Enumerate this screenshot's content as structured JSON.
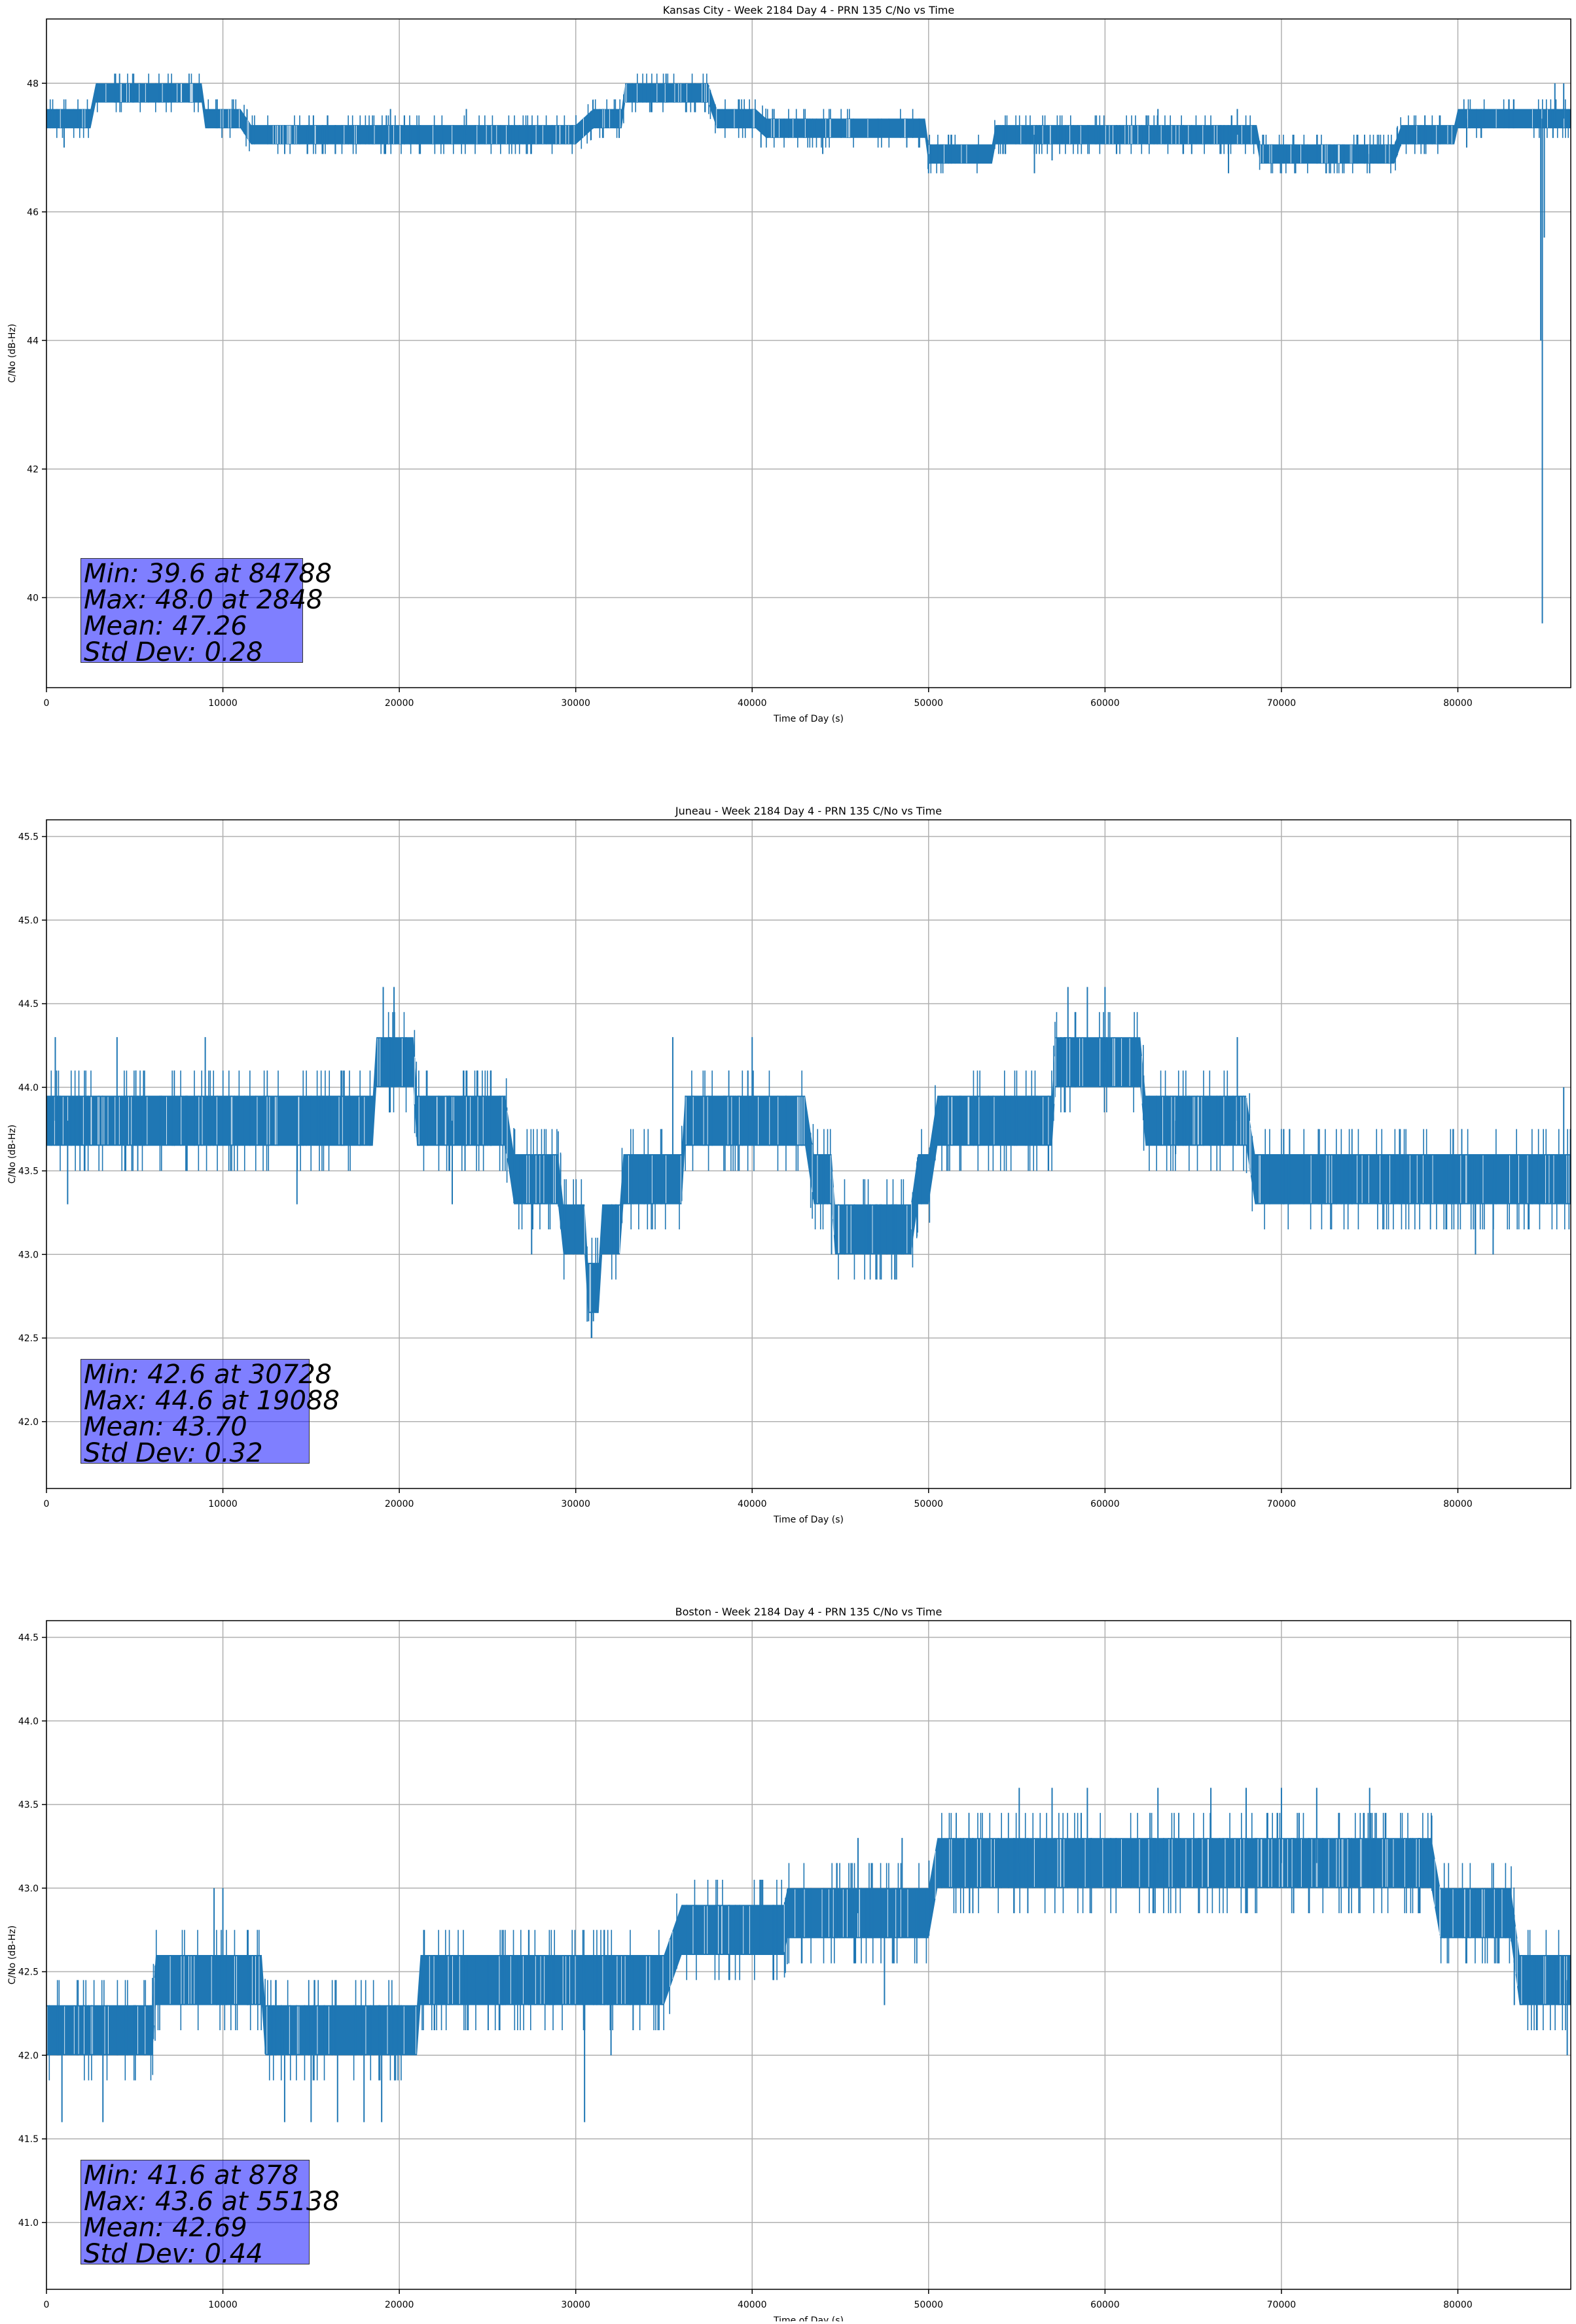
{
  "colors": {
    "series": "#1f77b4",
    "grid": "#b0b0b0",
    "statbox": "#8080ff"
  },
  "chart_data": [
    {
      "type": "line",
      "title": "Kansas City - Week 2184 Day 4 - PRN 135 C/No vs Time",
      "xlabel": "Time of Day (s)",
      "ylabel": "C/No (dB-Hz)",
      "xlim": [
        0,
        86400
      ],
      "ylim": [
        38.6,
        49.0
      ],
      "xticks": [
        0,
        10000,
        20000,
        30000,
        40000,
        50000,
        60000,
        70000,
        80000
      ],
      "yticks": [
        40,
        42,
        44,
        46,
        48
      ],
      "ytick_labels": [
        "40",
        "42",
        "44",
        "46",
        "48"
      ],
      "grid": true,
      "stats": [
        "Min: 39.6 at 84788",
        "Max: 48.0 at 2848",
        "Mean: 47.26",
        "Std Dev: 0.28"
      ],
      "base": [
        [
          0,
          47.45
        ],
        [
          2500,
          47.45
        ],
        [
          2800,
          47.85
        ],
        [
          8800,
          47.85
        ],
        [
          9000,
          47.45
        ],
        [
          9600,
          47.45
        ],
        [
          11000,
          47.45
        ],
        [
          11600,
          47.2
        ],
        [
          30000,
          47.2
        ],
        [
          31000,
          47.45
        ],
        [
          32600,
          47.45
        ],
        [
          32800,
          47.85
        ],
        [
          37500,
          47.85
        ],
        [
          38000,
          47.45
        ],
        [
          40200,
          47.45
        ],
        [
          40800,
          47.3
        ],
        [
          49800,
          47.3
        ],
        [
          50000,
          46.9
        ],
        [
          53600,
          46.9
        ],
        [
          53800,
          47.2
        ],
        [
          68600,
          47.2
        ],
        [
          68800,
          46.9
        ],
        [
          76400,
          46.9
        ],
        [
          76800,
          47.2
        ],
        [
          79800,
          47.2
        ],
        [
          80000,
          47.45
        ],
        [
          86400,
          47.45
        ]
      ],
      "half_band": 0.15,
      "spikes": [
        [
          1000,
          47.0
        ],
        [
          5000,
          48.0
        ],
        [
          7000,
          48.0
        ],
        [
          19500,
          47.6
        ],
        [
          23800,
          47.6
        ],
        [
          40500,
          47.0
        ],
        [
          44000,
          46.9
        ],
        [
          50000,
          46.6
        ],
        [
          56000,
          46.6
        ],
        [
          57000,
          46.8
        ],
        [
          63000,
          47.6
        ],
        [
          67500,
          47.6
        ],
        [
          67000,
          46.6
        ],
        [
          75000,
          46.6
        ],
        [
          80500,
          47.0
        ],
        [
          84700,
          44.0
        ],
        [
          84788,
          39.6
        ],
        [
          84900,
          45.6
        ],
        [
          85500,
          48.0
        ],
        [
          86000,
          48.0
        ]
      ]
    },
    {
      "type": "line",
      "title": "Juneau - Week 2184 Day 4 - PRN 135 C/No vs Time",
      "xlabel": "Time of Day (s)",
      "ylabel": "C/No (dB-Hz)",
      "xlim": [
        0,
        86400
      ],
      "ylim": [
        41.6,
        45.6
      ],
      "xticks": [
        0,
        10000,
        20000,
        30000,
        40000,
        50000,
        60000,
        70000,
        80000
      ],
      "yticks": [
        42.0,
        42.5,
        43.0,
        43.5,
        44.0,
        44.5,
        45.0,
        45.5
      ],
      "ytick_labels": [
        "42.0",
        "42.5",
        "43.0",
        "43.5",
        "44.0",
        "44.5",
        "45.0",
        "45.5"
      ],
      "grid": true,
      "stats": [
        "Min: 42.6 at 30728",
        "Max: 44.6 at 19088",
        "Mean: 43.70",
        "Std Dev: 0.32"
      ],
      "base": [
        [
          0,
          43.8
        ],
        [
          10000,
          43.8
        ],
        [
          14500,
          43.8
        ],
        [
          15000,
          43.8
        ],
        [
          18500,
          43.8
        ],
        [
          18700,
          44.15
        ],
        [
          20800,
          44.15
        ],
        [
          21000,
          43.8
        ],
        [
          26000,
          43.8
        ],
        [
          26500,
          43.45
        ],
        [
          29000,
          43.45
        ],
        [
          29300,
          43.15
        ],
        [
          30500,
          43.15
        ],
        [
          30700,
          42.8
        ],
        [
          31300,
          42.8
        ],
        [
          31500,
          43.15
        ],
        [
          32500,
          43.15
        ],
        [
          32700,
          43.45
        ],
        [
          36000,
          43.45
        ],
        [
          36200,
          43.8
        ],
        [
          43000,
          43.8
        ],
        [
          43500,
          43.45
        ],
        [
          44500,
          43.45
        ],
        [
          44700,
          43.15
        ],
        [
          49000,
          43.15
        ],
        [
          49400,
          43.45
        ],
        [
          50000,
          43.45
        ],
        [
          50500,
          43.8
        ],
        [
          57000,
          43.8
        ],
        [
          57200,
          44.15
        ],
        [
          62000,
          44.15
        ],
        [
          62300,
          43.8
        ],
        [
          68000,
          43.8
        ],
        [
          68500,
          43.45
        ],
        [
          86400,
          43.45
        ]
      ],
      "half_band": 0.15,
      "spikes": [
        [
          500,
          44.3
        ],
        [
          1200,
          43.3
        ],
        [
          4000,
          44.3
        ],
        [
          9000,
          44.3
        ],
        [
          14200,
          43.3
        ],
        [
          19088,
          44.6
        ],
        [
          19700,
          44.6
        ],
        [
          23000,
          43.3
        ],
        [
          27500,
          43.0
        ],
        [
          30728,
          42.6
        ],
        [
          31000,
          42.6
        ],
        [
          35500,
          44.3
        ],
        [
          40000,
          44.3
        ],
        [
          44500,
          43.0
        ],
        [
          49000,
          43.0
        ],
        [
          57900,
          44.6
        ],
        [
          59000,
          44.6
        ],
        [
          60000,
          44.6
        ],
        [
          64000,
          43.6
        ],
        [
          67500,
          44.3
        ],
        [
          81000,
          43.0
        ],
        [
          82000,
          43.0
        ],
        [
          86000,
          44.0
        ]
      ]
    },
    {
      "type": "line",
      "title": "Boston - Week 2184 Day 4 - PRN 135 C/No vs Time",
      "xlabel": "Time of Day (s)",
      "ylabel": "C/No (dB-Hz)",
      "xlim": [
        0,
        86400
      ],
      "ylim": [
        40.6,
        44.6
      ],
      "xticks": [
        0,
        10000,
        20000,
        30000,
        40000,
        50000,
        60000,
        70000,
        80000
      ],
      "yticks": [
        41.0,
        41.5,
        42.0,
        42.5,
        43.0,
        43.5,
        44.0,
        44.5
      ],
      "ytick_labels": [
        "41.0",
        "41.5",
        "42.0",
        "42.5",
        "43.0",
        "43.5",
        "44.0",
        "44.5"
      ],
      "grid": true,
      "stats": [
        "Min: 41.6 at 878",
        "Max: 43.6 at 55138",
        "Mean: 42.69",
        "Std Dev: 0.44"
      ],
      "base": [
        [
          0,
          42.15
        ],
        [
          6000,
          42.15
        ],
        [
          6200,
          42.45
        ],
        [
          12200,
          42.45
        ],
        [
          12400,
          42.15
        ],
        [
          21000,
          42.15
        ],
        [
          21200,
          42.45
        ],
        [
          34000,
          42.45
        ],
        [
          34500,
          42.45
        ],
        [
          35000,
          42.45
        ],
        [
          35500,
          42.6
        ],
        [
          36000,
          42.75
        ],
        [
          41800,
          42.75
        ],
        [
          42000,
          42.85
        ],
        [
          50000,
          42.85
        ],
        [
          50500,
          43.15
        ],
        [
          78500,
          43.15
        ],
        [
          79000,
          42.85
        ],
        [
          83000,
          42.85
        ],
        [
          83500,
          42.45
        ],
        [
          86400,
          42.45
        ]
      ],
      "half_band": 0.15,
      "spikes": [
        [
          878,
          41.6
        ],
        [
          3200,
          41.6
        ],
        [
          8500,
          42.6
        ],
        [
          9500,
          43.0
        ],
        [
          10000,
          43.0
        ],
        [
          13500,
          41.6
        ],
        [
          15000,
          41.6
        ],
        [
          16500,
          41.6
        ],
        [
          18000,
          41.6
        ],
        [
          19000,
          41.6
        ],
        [
          30500,
          41.6
        ],
        [
          32000,
          42.0
        ],
        [
          46000,
          43.3
        ],
        [
          47500,
          42.3
        ],
        [
          48500,
          43.3
        ],
        [
          55138,
          43.6
        ],
        [
          57000,
          43.6
        ],
        [
          59000,
          43.6
        ],
        [
          63000,
          43.6
        ],
        [
          66000,
          43.6
        ],
        [
          68000,
          43.6
        ],
        [
          70000,
          43.6
        ],
        [
          72000,
          43.6
        ],
        [
          75000,
          43.6
        ],
        [
          79500,
          43.0
        ],
        [
          83200,
          42.3
        ],
        [
          86200,
          42.0
        ]
      ]
    }
  ]
}
